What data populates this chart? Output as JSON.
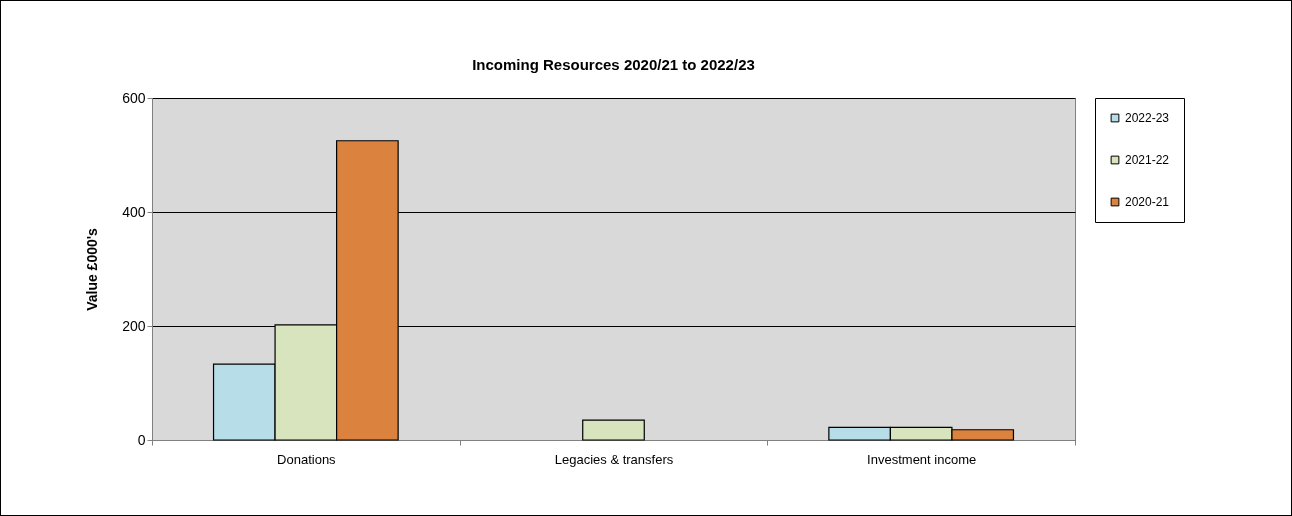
{
  "chart_data": {
    "type": "bar",
    "title": "Incoming Resources 2020/21 to 2022/23",
    "ylabel": "Value £000's",
    "categories": [
      "Donations",
      "Legacies & transfers",
      "Investment income"
    ],
    "series": [
      {
        "name": "2022-23",
        "color": "#b7dde8",
        "values": [
          133,
          null,
          22
        ]
      },
      {
        "name": "2021-22",
        "color": "#d7e4bd",
        "values": [
          202,
          35,
          22
        ]
      },
      {
        "name": "2020-21",
        "color": "#db823e",
        "values": [
          525,
          null,
          18
        ]
      }
    ],
    "ylim": [
      0,
      600
    ],
    "yticks": [
      0,
      200,
      400,
      600
    ],
    "grid": "y",
    "legend": "right"
  }
}
